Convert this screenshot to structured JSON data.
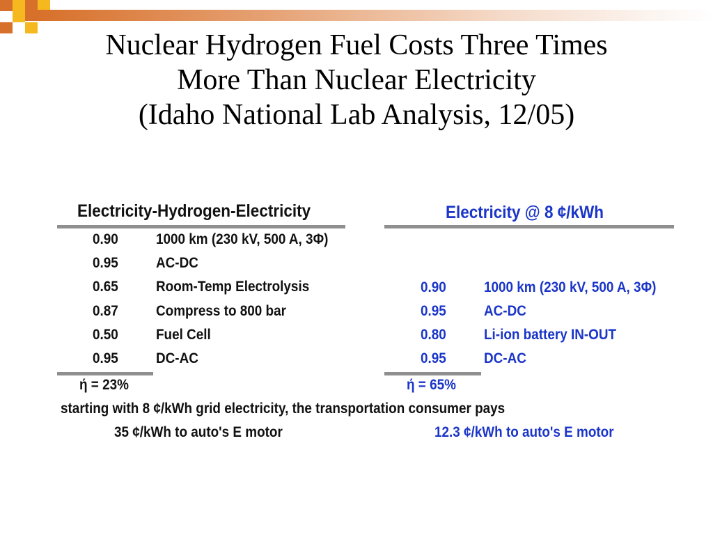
{
  "slide": {
    "title_lines": [
      "Nuclear Hydrogen Fuel Costs Three Times",
      "More Than Nuclear Electricity",
      "(Idaho National Lab Analysis, 12/05)"
    ]
  },
  "left_table": {
    "header": "Electricity-Hydrogen-Electricity",
    "rows": [
      {
        "factor": "0.90",
        "label": "1000 km (230 kV, 500 A, 3Φ)"
      },
      {
        "factor": "0.95",
        "label": "AC-DC"
      },
      {
        "factor": "0.65",
        "label": "Room-Temp Electrolysis"
      },
      {
        "factor": "0.87",
        "label": "Compress to 800 bar"
      },
      {
        "factor": "0.50",
        "label": "Fuel Cell"
      },
      {
        "factor": "0.95",
        "label": "DC-AC"
      }
    ],
    "efficiency": "ή = 23%"
  },
  "right_table": {
    "header": "Electricity @ 8 ¢/kWh",
    "rows": [
      {
        "factor": "0.90",
        "label": "1000 km (230 kV, 500 A, 3Φ)"
      },
      {
        "factor": "0.95",
        "label": "AC-DC"
      },
      {
        "factor": "0.80",
        "label": "Li-ion battery IN-OUT"
      },
      {
        "factor": "0.95",
        "label": "DC-AC"
      }
    ],
    "efficiency": "ή = 65%"
  },
  "summary": {
    "line": "starting with 8 ¢/kWh grid electricity, the transportation consumer pays",
    "left_cost": "35 ¢/kWh to auto's E motor",
    "right_cost": "12.3 ¢/kWh to auto's E motor"
  },
  "colors": {
    "accent_orange": "#d7702a",
    "accent_yellow": "#f5b81f",
    "blue_text": "#1a35c8",
    "rule_gray": "#8f8f8f"
  }
}
